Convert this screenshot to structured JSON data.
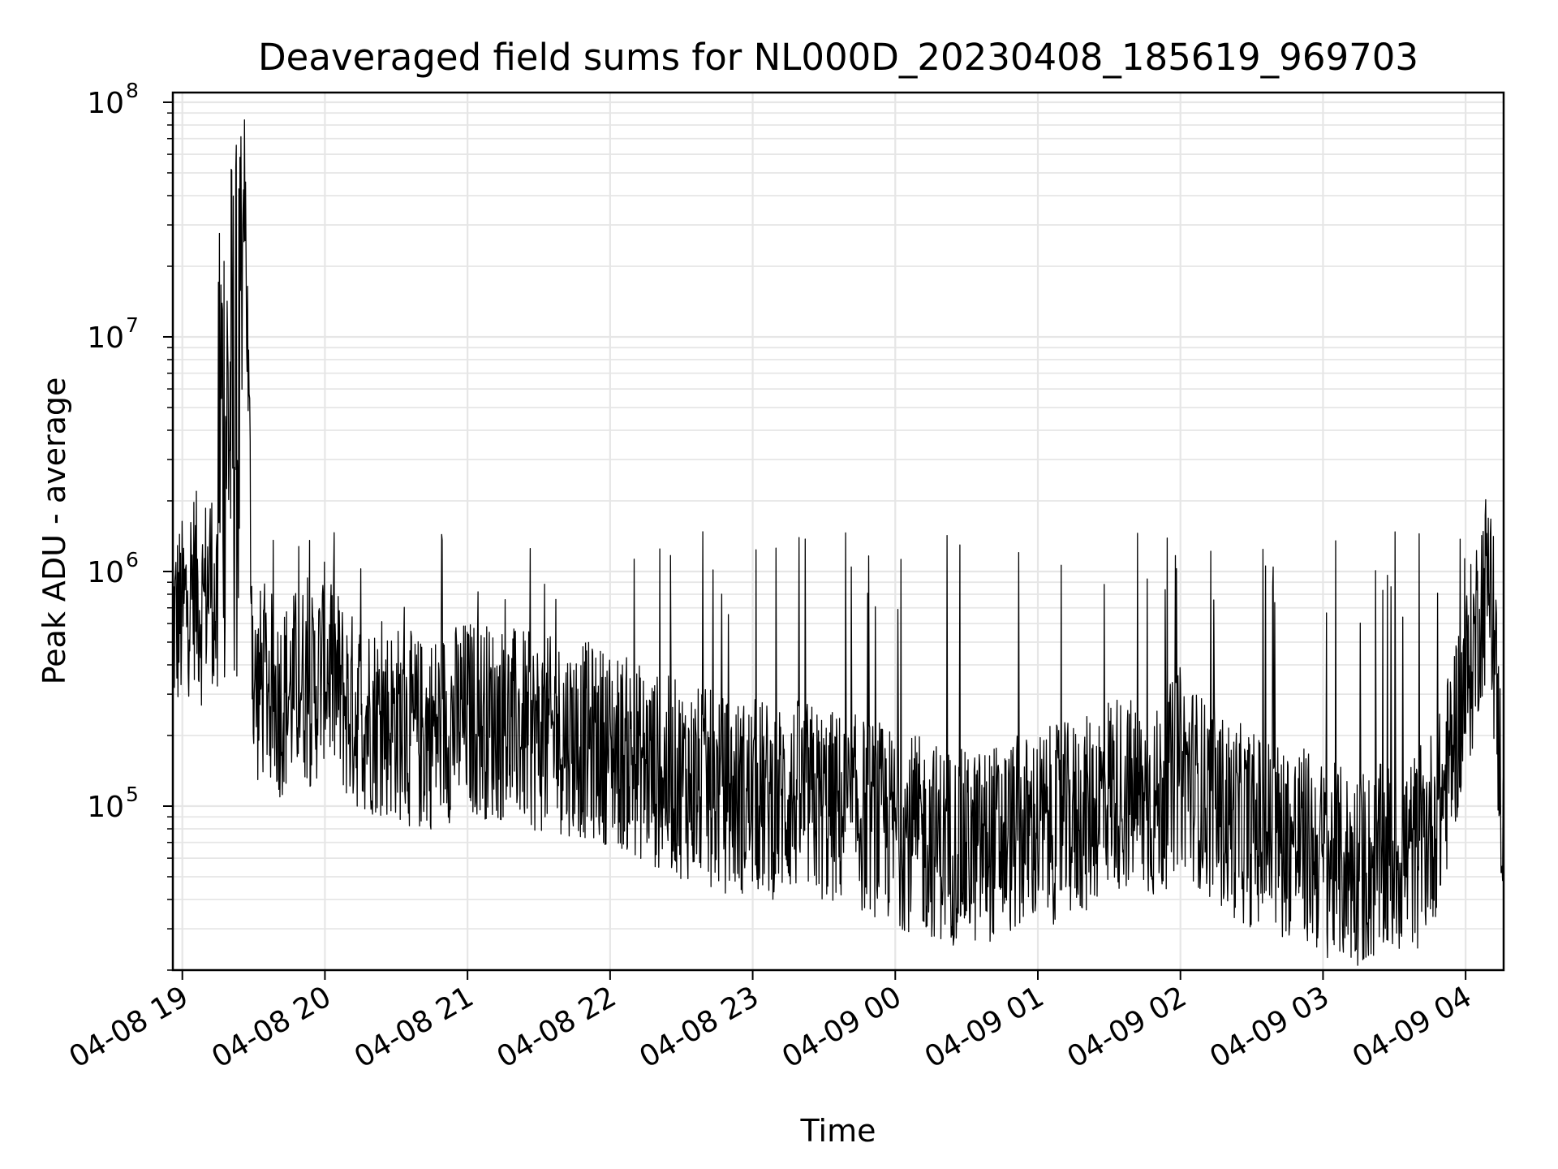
{
  "chart_data": {
    "type": "line",
    "title": "Deaveraged field sums for NL000D_20230408_185619_969703",
    "xlabel": "Time",
    "ylabel": "Peak ADU - average",
    "y_scale": "log",
    "ylim": [
      20000,
      110000000
    ],
    "xlim": [
      "2023-04-08 18:56",
      "2023-04-09 04:16"
    ],
    "grid": true,
    "line_color": "#000000",
    "x_tick_labels": [
      "04-08 19",
      "04-08 20",
      "04-08 21",
      "04-08 22",
      "04-08 23",
      "04-09 00",
      "04-09 01",
      "04-09 02",
      "04-09 03",
      "04-09 04"
    ],
    "y_ticks": [
      {
        "value": 100000,
        "base": "10",
        "exp": "5"
      },
      {
        "value": 1000000,
        "base": "10",
        "exp": "6"
      },
      {
        "value": 10000000,
        "base": "10",
        "exp": "7"
      },
      {
        "value": 100000000,
        "base": "10",
        "exp": "8"
      }
    ],
    "series": [
      {
        "x": [
          "2023-04-08 18:56",
          "2023-04-08 19:00",
          "2023-04-08 19:05",
          "2023-04-08 19:08",
          "2023-04-08 19:12",
          "2023-04-08 19:15",
          "2023-04-08 19:18",
          "2023-04-08 19:20",
          "2023-04-08 19:22",
          "2023-04-08 19:24",
          "2023-04-08 19:26",
          "2023-04-08 19:30",
          "2023-04-08 19:35",
          "2023-04-08 19:40",
          "2023-04-08 19:45",
          "2023-04-08 19:50",
          "2023-04-08 19:55",
          "2023-04-08 20:00",
          "2023-04-08 20:10",
          "2023-04-08 20:20",
          "2023-04-08 20:30",
          "2023-04-08 20:40",
          "2023-04-08 20:50",
          "2023-04-08 21:00",
          "2023-04-08 21:10",
          "2023-04-08 21:20",
          "2023-04-08 21:30",
          "2023-04-08 21:40",
          "2023-04-08 21:50",
          "2023-04-08 22:00",
          "2023-04-08 22:10",
          "2023-04-08 22:20",
          "2023-04-08 22:30",
          "2023-04-08 22:40",
          "2023-04-08 22:50",
          "2023-04-08 23:00",
          "2023-04-08 23:10",
          "2023-04-08 23:20",
          "2023-04-08 23:30",
          "2023-04-08 23:40",
          "2023-04-08 23:50",
          "2023-04-09 00:00",
          "2023-04-09 00:10",
          "2023-04-09 00:20",
          "2023-04-09 00:30",
          "2023-04-09 00:40",
          "2023-04-09 00:50",
          "2023-04-09 01:00",
          "2023-04-09 01:10",
          "2023-04-09 01:20",
          "2023-04-09 01:30",
          "2023-04-09 01:40",
          "2023-04-09 01:50",
          "2023-04-09 02:00",
          "2023-04-09 02:10",
          "2023-04-09 02:20",
          "2023-04-09 02:30",
          "2023-04-09 02:40",
          "2023-04-09 02:50",
          "2023-04-09 03:00",
          "2023-04-09 03:10",
          "2023-04-09 03:20",
          "2023-04-09 03:30",
          "2023-04-09 03:40",
          "2023-04-09 03:50",
          "2023-04-09 03:55",
          "2023-04-09 04:00",
          "2023-04-09 04:03",
          "2023-04-09 04:06",
          "2023-04-09 04:10",
          "2023-04-09 04:13",
          "2023-04-09 04:16"
        ],
        "y": [
          600000,
          650000,
          900000,
          700000,
          1000000,
          500000,
          900000,
          600000,
          60000000,
          400000,
          65000000,
          300000,
          350000,
          280000,
          300000,
          350000,
          300000,
          420000,
          260000,
          240000,
          230000,
          200000,
          220000,
          240000,
          230000,
          220000,
          200000,
          200000,
          190000,
          180000,
          160000,
          140000,
          130000,
          120000,
          110000,
          110000,
          105000,
          110000,
          100000,
          95000,
          90000,
          80000,
          75000,
          70000,
          65000,
          70000,
          75000,
          80000,
          85000,
          90000,
          120000,
          110000,
          100000,
          150000,
          110000,
          90000,
          80000,
          75000,
          70000,
          60000,
          55000,
          55000,
          60000,
          65000,
          100000,
          200000,
          320000,
          450000,
          700000,
          1000000,
          300000,
          70000
        ]
      }
    ]
  }
}
